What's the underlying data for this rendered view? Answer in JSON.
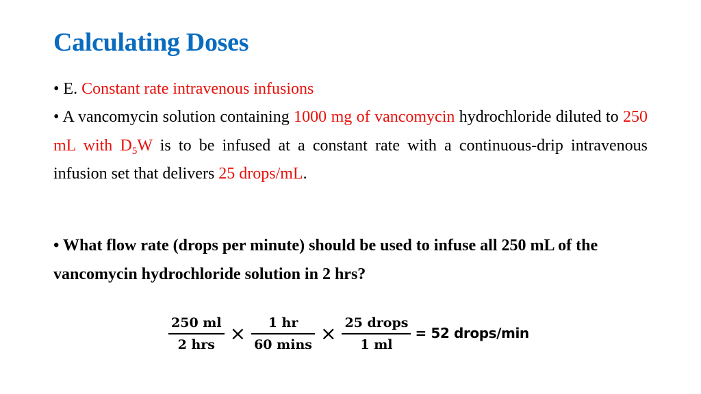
{
  "slide": {
    "title": "Calculating Doses",
    "title_color": "#0a6cbf",
    "accent_color": "#e8120c",
    "bullet1": {
      "bullet": "•",
      "prefix": "E.",
      "highlight": "Constant rate intravenous infusions"
    },
    "bullet2": {
      "bullet": "•",
      "t1": "A vancomycin solution containing ",
      "h1": "1000 mg of vancomycin",
      "t2": " hydrochloride diluted to ",
      "h2": "250 mL with D",
      "h2_sub": "5",
      "h2_end": "W",
      "t3": " is to be infused at a constant rate with a continuous-drip intravenous infusion set that delivers ",
      "h3": "25 drops/mL",
      "t4": "."
    },
    "question": {
      "bullet": "•",
      "text": "What flow rate (drops per minute) should be used to infuse all 250 mL of the vancomycin hydrochloride solution in 2 hrs?"
    },
    "equation": {
      "fractions": [
        {
          "numerator": "250 ml",
          "denominator": "2 hrs"
        },
        {
          "numerator": "1 hr",
          "denominator": "60 mins"
        },
        {
          "numerator": "25 drops",
          "denominator": "1 ml"
        }
      ],
      "operator": "×",
      "result": "= 52 drops/min"
    }
  }
}
